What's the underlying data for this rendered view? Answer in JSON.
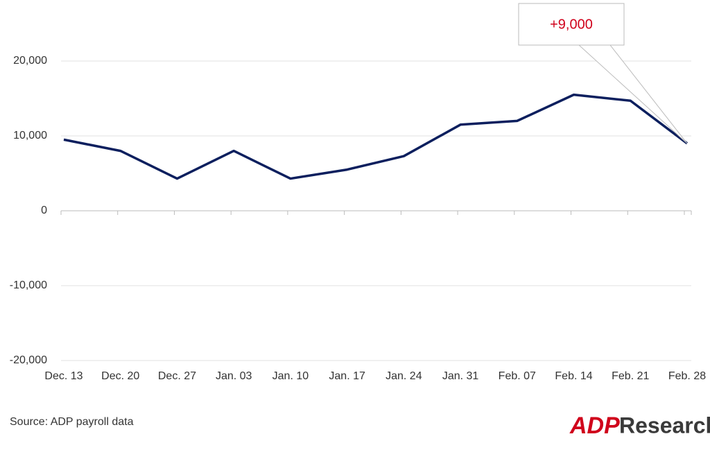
{
  "chart_data": {
    "type": "line",
    "categories": [
      "Dec. 13",
      "Dec. 20",
      "Dec. 27",
      "Jan. 03",
      "Jan. 10",
      "Jan. 17",
      "Jan. 24",
      "Jan. 31",
      "Feb. 07",
      "Feb. 14",
      "Feb. 21",
      "Feb. 28"
    ],
    "series": [
      {
        "color": "#0c1f5e",
        "values": [
          9500,
          8000,
          4300,
          8000,
          4300,
          5500,
          7300,
          11500,
          12000,
          15500,
          14700,
          9000
        ]
      }
    ],
    "ylim": [
      -20000,
      20000
    ],
    "yticks": [
      {
        "value": -20000,
        "label": "-20,000"
      },
      {
        "value": -10000,
        "label": "-10,000"
      },
      0,
      {
        "value": 10000,
        "label": "10,000"
      },
      {
        "value": 20000,
        "label": "20,000"
      }
    ],
    "grid": true,
    "annotation": "+9,000",
    "annotation_color": "#d0021b"
  },
  "source": "Source: ADP payroll data",
  "brand": {
    "mark": "ADP",
    "name": "Research"
  }
}
